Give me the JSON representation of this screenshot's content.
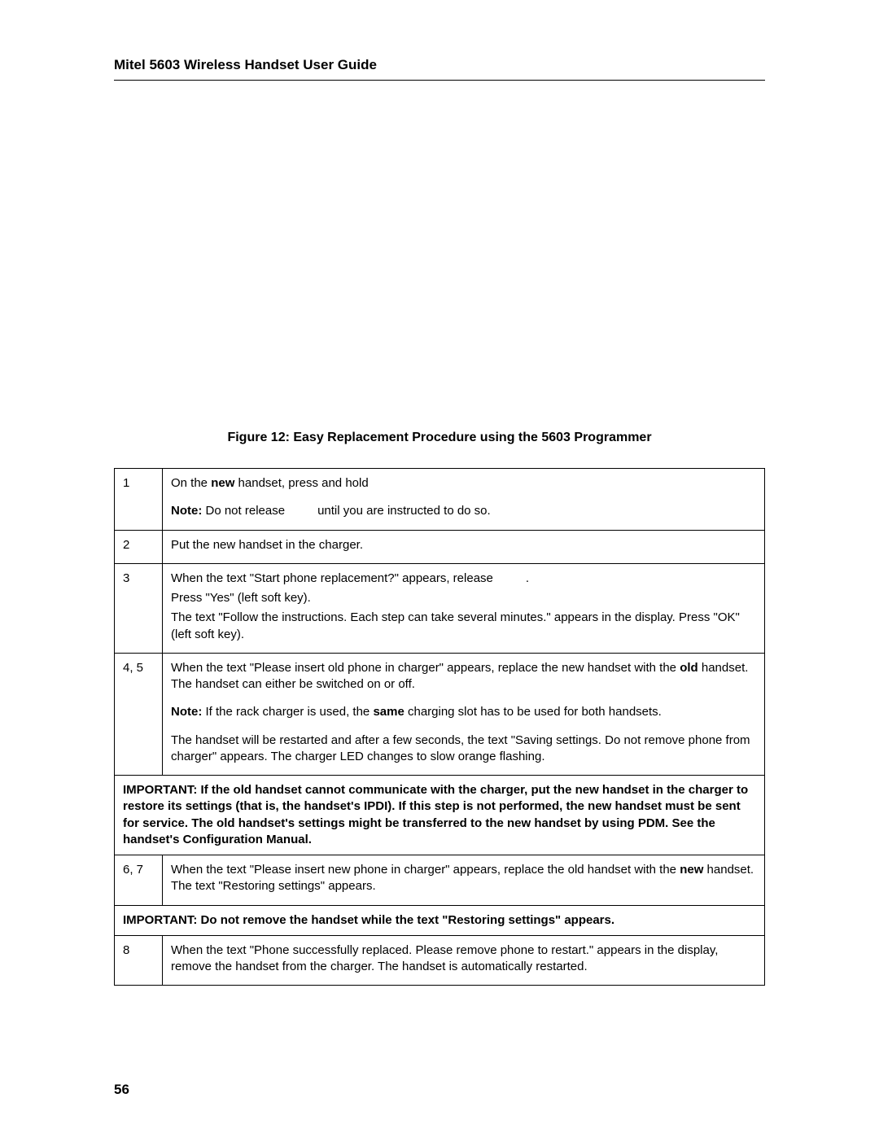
{
  "header": {
    "title": "Mitel 5603 Wireless Handset User Guide"
  },
  "figure_caption": "Figure 12: Easy Replacement Procedure using the 5603 Programmer",
  "rows": [
    {
      "num": "1",
      "p1_a": "On the ",
      "p1_b_bold": "new",
      "p1_c": " handset, press and hold",
      "p2_a_bold": "Note:",
      "p2_b": " Do not release",
      "p2_c": "until you are instructed to do so."
    },
    {
      "num": "2",
      "p1": "Put the new handset in the charger."
    },
    {
      "num": "3",
      "p1": "When the text \"Start phone replacement?\" appears, release",
      "p1_end": ".",
      "p2": "Press \"Yes\" (left soft key).",
      "p3": "The text \"Follow the instructions. Each step can take several minutes.\" appears in the display. Press \"OK\"(left soft key)."
    },
    {
      "num": "4, 5",
      "p1_a": "When the text \"Please insert old phone in charger\" appears, replace the new handset with the ",
      "p1_b_bold": "old",
      "p1_c": " handset. The handset can either be switched on or off.",
      "p2_a_bold": "Note:",
      "p2_b": " If the rack charger is used, the ",
      "p2_c_bold": "same",
      "p2_d": " charging slot has to be used for both handsets.",
      "p3": "The handset will be restarted and after a few seconds, the text \"Saving settings. Do not remove phone from charger\" appears. The charger LED changes to slow orange flashing."
    },
    {
      "important1": "IMPORTANT: If the old handset cannot communicate with the charger, put the new handset in the charger to restore its settings (that is, the handset's IPDI). If this step is not performed, the new handset must be sent for service. The old handset's settings might be transferred to the new handset by using PDM. See the handset's Configuration Manual."
    },
    {
      "num": "6, 7",
      "p1_a": "When the text \"Please insert new phone in charger\" appears, replace the old handset with the ",
      "p1_b_bold": "new",
      "p1_c": " handset. The text \"Restoring settings\" appears."
    },
    {
      "important2": "IMPORTANT: Do not remove the handset while the text \"Restoring settings\" appears."
    },
    {
      "num": "8",
      "p1": "When the text \"Phone successfully replaced. Please remove phone to restart.\" appears in the display, remove the handset from the charger. The handset is automatically restarted."
    }
  ],
  "page_number": "56"
}
